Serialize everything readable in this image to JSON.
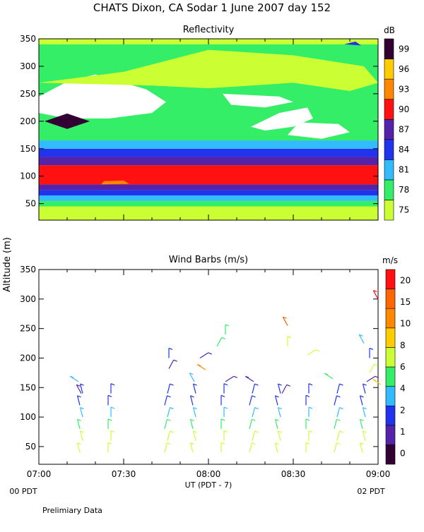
{
  "title": "CHATS Dixon, CA  Sodar    1 June 2007   day 152",
  "ylabel": "Altitude (m)",
  "footer": {
    "left_label": "00 PDT",
    "right_label": "02 PDT",
    "xlabel": "UT  (PDT - 7)",
    "note": "Prelimiary Data"
  },
  "colors": {
    "white": "#ffffff",
    "reflectivity_scale": [
      "#ccff33",
      "#33ee66",
      "#33bbff",
      "#2233ee",
      "#5522aa",
      "#ff1111",
      "#ff8800",
      "#ffcc00",
      "#330033"
    ],
    "wind_scale": [
      "#330033",
      "#5522aa",
      "#2233ee",
      "#33bbff",
      "#33ee66",
      "#ccff33",
      "#ffcc00",
      "#ff8800",
      "#ff6600",
      "#ff1111"
    ]
  },
  "chart_data": [
    {
      "type": "heatmap",
      "title": "Reflectivity",
      "xlim": [
        0,
        120
      ],
      "ylim": [
        20,
        350
      ],
      "x_ticks": [],
      "y_ticks": [
        "50",
        "100",
        "150",
        "200",
        "250",
        "300",
        "350"
      ],
      "colorbar": {
        "unit": "dB",
        "labels": [
          "75",
          "78",
          "81",
          "84",
          "87",
          "90",
          "93",
          "96",
          "99"
        ]
      },
      "bands": [
        {
          "y": [
            38,
            45
          ],
          "level": 0
        },
        {
          "y": [
            45,
            55
          ],
          "level": 1
        },
        {
          "y": [
            55,
            65
          ],
          "level": 2
        },
        {
          "y": [
            65,
            75
          ],
          "level": 3
        },
        {
          "y": [
            75,
            85
          ],
          "level": 4
        },
        {
          "y": [
            85,
            120
          ],
          "level": 5
        },
        {
          "y": [
            120,
            135
          ],
          "level": 4
        },
        {
          "y": [
            135,
            150
          ],
          "level": 3
        },
        {
          "y": [
            150,
            165
          ],
          "level": 2
        },
        {
          "y": [
            165,
            340
          ],
          "level": 1
        },
        {
          "y": [
            340,
            350
          ],
          "level": 0
        }
      ],
      "features": [
        {
          "kind": "white",
          "points": [
            [
              0,
              245
            ],
            [
              10,
              272
            ],
            [
              20,
              285
            ],
            [
              30,
              270
            ],
            [
              38,
              258
            ],
            [
              45,
              235
            ],
            [
              40,
              215
            ],
            [
              25,
              205
            ],
            [
              10,
              205
            ],
            [
              0,
              215
            ]
          ]
        },
        {
          "kind": "white",
          "points": [
            [
              55,
              310
            ],
            [
              70,
              305
            ],
            [
              78,
              292
            ],
            [
              70,
              285
            ],
            [
              60,
              290
            ]
          ]
        },
        {
          "kind": "white",
          "points": [
            [
              65,
              250
            ],
            [
              85,
              245
            ],
            [
              90,
              235
            ],
            [
              80,
              225
            ],
            [
              68,
              230
            ]
          ]
        },
        {
          "kind": "white",
          "points": [
            [
              75,
              190
            ],
            [
              85,
              215
            ],
            [
              95,
              225
            ],
            [
              97,
              205
            ],
            [
              90,
              190
            ],
            [
              80,
              183
            ]
          ]
        },
        {
          "kind": "white",
          "points": [
            [
              88,
              175
            ],
            [
              100,
              168
            ],
            [
              110,
              180
            ],
            [
              106,
              195
            ],
            [
              92,
              198
            ]
          ]
        },
        {
          "kind": "lime",
          "points": [
            [
              0,
              270
            ],
            [
              30,
              290
            ],
            [
              60,
              330
            ],
            [
              90,
              320
            ],
            [
              115,
              300
            ],
            [
              120,
              270
            ],
            [
              110,
              255
            ],
            [
              90,
              270
            ],
            [
              60,
              260
            ],
            [
              40,
              265
            ]
          ]
        },
        {
          "kind": "dark",
          "points": [
            [
              2,
              200
            ],
            [
              10,
              214
            ],
            [
              18,
              200
            ],
            [
              10,
              186
            ]
          ]
        },
        {
          "kind": "orange",
          "points": [
            [
              22,
              85
            ],
            [
              32,
              86
            ],
            [
              30,
              92
            ],
            [
              23,
              91
            ]
          ]
        },
        {
          "kind": "blue",
          "points": [
            [
              108,
              340
            ],
            [
              114,
              338
            ],
            [
              112,
              345
            ]
          ]
        }
      ]
    },
    {
      "type": "scatter",
      "title": "Wind Barbs (m/s)",
      "x_ticks": [
        "07:00",
        "07:30",
        "08:00",
        "08:30",
        "09:00"
      ],
      "x": [
        0,
        30,
        60,
        90,
        120
      ],
      "ylim": [
        20,
        350
      ],
      "y_ticks": [
        "50",
        "100",
        "150",
        "200",
        "250",
        "300",
        "350"
      ],
      "colorbar": {
        "unit": "m/s",
        "labels": [
          "0",
          "1",
          "2",
          "4",
          "6",
          "8",
          "10",
          "15",
          "20"
        ]
      },
      "columns": [
        15,
        25,
        45,
        55,
        65,
        75,
        85,
        95,
        105,
        115
      ],
      "altitudes": [
        40,
        60,
        80,
        100,
        120,
        140
      ],
      "level_by_altitude": [
        5,
        5,
        4,
        3,
        2,
        2
      ],
      "upper_barbs": [
        {
          "x": 14,
          "y": 160,
          "level": 3
        },
        {
          "x": 15,
          "y": 140,
          "level": 1
        },
        {
          "x": 46,
          "y": 200,
          "level": 2
        },
        {
          "x": 46,
          "y": 182,
          "level": 1
        },
        {
          "x": 57,
          "y": 200,
          "level": 1
        },
        {
          "x": 59,
          "y": 180,
          "level": 7
        },
        {
          "x": 55,
          "y": 160,
          "level": 3
        },
        {
          "x": 66,
          "y": 240,
          "level": 4
        },
        {
          "x": 63,
          "y": 220,
          "level": 4
        },
        {
          "x": 66,
          "y": 160,
          "level": 1
        },
        {
          "x": 76,
          "y": 160,
          "level": 1
        },
        {
          "x": 88,
          "y": 255,
          "level": 8
        },
        {
          "x": 88,
          "y": 220,
          "level": 5
        },
        {
          "x": 86,
          "y": 140,
          "level": 1
        },
        {
          "x": 95,
          "y": 205,
          "level": 5
        },
        {
          "x": 104,
          "y": 165,
          "level": 4
        },
        {
          "x": 115,
          "y": 225,
          "level": 3
        },
        {
          "x": 117,
          "y": 200,
          "level": 2
        },
        {
          "x": 117,
          "y": 175,
          "level": 5
        },
        {
          "x": 116,
          "y": 160,
          "level": 1
        },
        {
          "x": 121,
          "y": 155,
          "level": 6
        },
        {
          "x": 120,
          "y": 300,
          "level": 9
        }
      ]
    }
  ]
}
